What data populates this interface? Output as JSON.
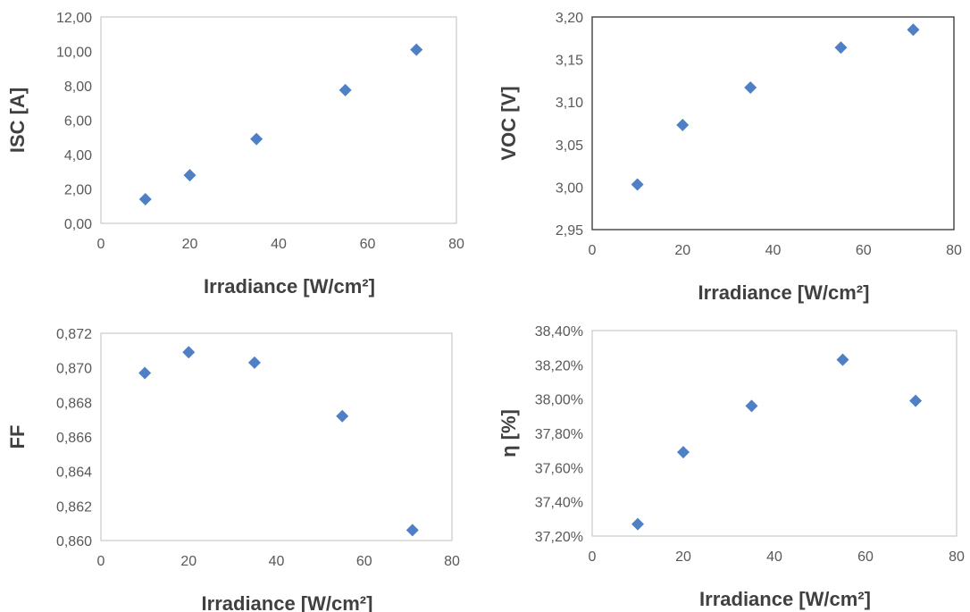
{
  "figure": {
    "marker_color": "#4f7fc4",
    "axis_color": "#bfbfbf",
    "text_color": "#404040",
    "tick_text_color": "#595959"
  },
  "chart_data": [
    {
      "type": "scatter",
      "panel": "isc",
      "title": "",
      "xlabel": "Irradiance [W/cm²]",
      "ylabel": "ISC [A]",
      "xlim": [
        0,
        80
      ],
      "ylim": [
        0,
        12
      ],
      "x_ticks": [
        "0",
        "20",
        "40",
        "60",
        "80"
      ],
      "y_ticks": [
        "0,00",
        "2,00",
        "4,00",
        "6,00",
        "8,00",
        "10,00",
        "12,00"
      ],
      "x": [
        10,
        20,
        35,
        55,
        71
      ],
      "y": [
        1.4,
        2.8,
        4.9,
        7.75,
        10.1
      ],
      "marker": "diamond",
      "grid": false
    },
    {
      "type": "scatter",
      "panel": "voc",
      "title": "",
      "xlabel": "Irradiance [W/cm²]",
      "ylabel": "VOC [V]",
      "xlim": [
        0,
        80
      ],
      "ylim": [
        2.95,
        3.2
      ],
      "x_ticks": [
        "0",
        "20",
        "40",
        "60",
        "80"
      ],
      "y_ticks": [
        "2,95",
        "3,00",
        "3,05",
        "3,10",
        "3,15",
        "3,20"
      ],
      "x": [
        10,
        20,
        35,
        55,
        71
      ],
      "y": [
        3.003,
        3.073,
        3.117,
        3.164,
        3.185
      ],
      "marker": "diamond",
      "grid": false
    },
    {
      "type": "scatter",
      "panel": "ff",
      "title": "",
      "xlabel": "Irradiance [W/cm²]",
      "ylabel": "FF",
      "xlim": [
        0,
        80
      ],
      "ylim": [
        0.86,
        0.872
      ],
      "x_ticks": [
        "0",
        "20",
        "40",
        "60",
        "80"
      ],
      "y_ticks": [
        "0,860",
        "0,862",
        "0,864",
        "0,866",
        "0,868",
        "0,870",
        "0,872"
      ],
      "x": [
        10,
        20,
        35,
        55,
        71
      ],
      "y": [
        0.8697,
        0.8709,
        0.8703,
        0.8672,
        0.8606
      ],
      "marker": "diamond",
      "grid": false
    },
    {
      "type": "scatter",
      "panel": "eta",
      "title": "",
      "xlabel": "Irradiance [W/cm²]",
      "ylabel": "η [%]",
      "xlim": [
        0,
        80
      ],
      "ylim": [
        37.2,
        38.4
      ],
      "x_ticks": [
        "0",
        "20",
        "40",
        "60",
        "80"
      ],
      "y_ticks": [
        "37,20%",
        "37,40%",
        "37,60%",
        "37,80%",
        "38,00%",
        "38,20%",
        "38,40%"
      ],
      "x": [
        10,
        20,
        35,
        55,
        71
      ],
      "y": [
        37.27,
        37.69,
        37.96,
        38.23,
        37.99
      ],
      "marker": "diamond",
      "grid": false
    }
  ]
}
